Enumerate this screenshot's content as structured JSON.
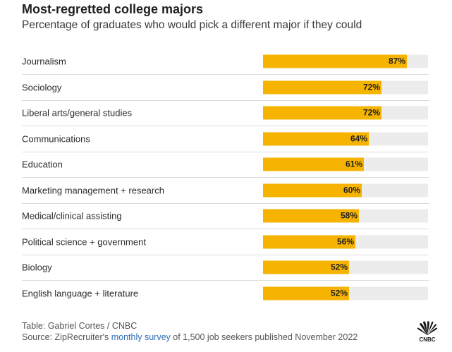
{
  "header": {
    "title": "Most-regretted college majors",
    "subtitle": "Percentage of graduates who would pick a different major if they could"
  },
  "chart_data": {
    "type": "bar",
    "orientation": "horizontal",
    "title": "Most-regretted college majors",
    "subtitle": "Percentage of graduates who would pick a different major if they could",
    "categories": [
      "Journalism",
      "Sociology",
      "Liberal arts/general studies",
      "Communications",
      "Education",
      "Marketing management + research",
      "Medical/clinical assisting",
      "Political science + government",
      "Biology",
      "English language + literature"
    ],
    "values": [
      87,
      72,
      72,
      64,
      61,
      60,
      58,
      56,
      52,
      52
    ],
    "value_labels": [
      "87%",
      "72%",
      "72%",
      "64%",
      "61%",
      "60%",
      "58%",
      "56%",
      "52%",
      "52%"
    ],
    "xlim": [
      0,
      100
    ],
    "unit": "%",
    "xlabel": "",
    "ylabel": ""
  },
  "colors": {
    "bar": "#f6b400",
    "track": "#ececec",
    "text": "#2b2b2b"
  },
  "footer": {
    "credit": "Table: Gabriel Cortes / CNBC",
    "source_prefix": "Source: ZipRecruiter's ",
    "source_link": "monthly survey",
    "source_suffix": " of 1,500 job seekers published November 2022"
  },
  "logo": {
    "icon": "peacock-icon",
    "text": "CNBC"
  }
}
